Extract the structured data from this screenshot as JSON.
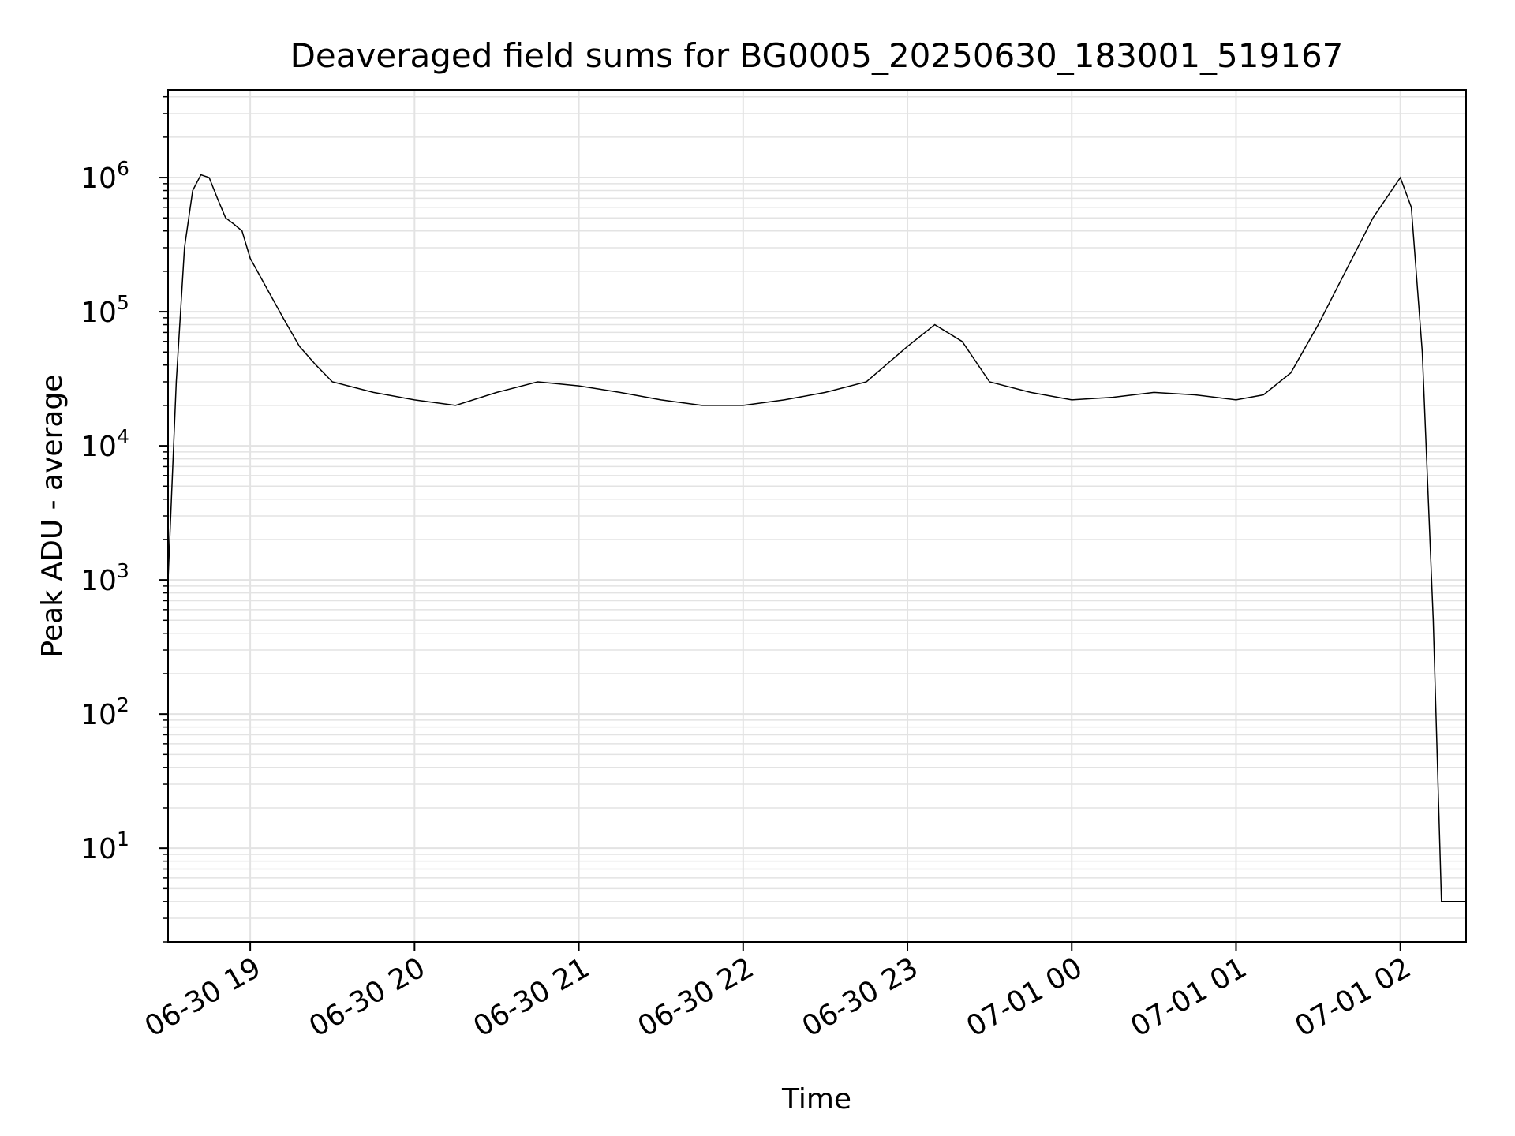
{
  "chart_data": {
    "type": "line",
    "title": "Deaveraged field sums for BG0005_20250630_183001_519167",
    "xlabel": "Time",
    "ylabel": "Peak ADU - average",
    "yscale": "log",
    "ylim": [
      2,
      4500000
    ],
    "xlim": [
      "2025-06-30 18:30",
      "2025-07-01 02:24"
    ],
    "grid": true,
    "line_color": "#000000",
    "grid_color": "#e3e3e3",
    "x_ticks": [
      {
        "value": "2025-06-30 19:00",
        "label": "06-30 19"
      },
      {
        "value": "2025-06-30 20:00",
        "label": "06-30 20"
      },
      {
        "value": "2025-06-30 21:00",
        "label": "06-30 21"
      },
      {
        "value": "2025-06-30 22:00",
        "label": "06-30 22"
      },
      {
        "value": "2025-06-30 23:00",
        "label": "06-30 23"
      },
      {
        "value": "2025-07-01 00:00",
        "label": "07-01 00"
      },
      {
        "value": "2025-07-01 01:00",
        "label": "07-01 01"
      },
      {
        "value": "2025-07-01 02:00",
        "label": "07-01 02"
      }
    ],
    "y_ticks": [
      {
        "value": 10,
        "base": "10",
        "exp": "1"
      },
      {
        "value": 100,
        "base": "10",
        "exp": "2"
      },
      {
        "value": 1000,
        "base": "10",
        "exp": "3"
      },
      {
        "value": 10000,
        "base": "10",
        "exp": "4"
      },
      {
        "value": 100000,
        "base": "10",
        "exp": "5"
      },
      {
        "value": 1000000,
        "base": "10",
        "exp": "6"
      }
    ],
    "series": [
      {
        "points": [
          [
            "2025-06-30 18:30",
            1000
          ],
          [
            "2025-06-30 18:33",
            30000
          ],
          [
            "2025-06-30 18:36",
            300000
          ],
          [
            "2025-06-30 18:39",
            800000
          ],
          [
            "2025-06-30 18:42",
            1050000
          ],
          [
            "2025-06-30 18:45",
            1000000
          ],
          [
            "2025-06-30 18:48",
            700000
          ],
          [
            "2025-06-30 18:51",
            500000
          ],
          [
            "2025-06-30 18:54",
            450000
          ],
          [
            "2025-06-30 18:57",
            400000
          ],
          [
            "2025-06-30 19:00",
            250000
          ],
          [
            "2025-06-30 19:06",
            150000
          ],
          [
            "2025-06-30 19:12",
            90000
          ],
          [
            "2025-06-30 19:18",
            55000
          ],
          [
            "2025-06-30 19:24",
            40000
          ],
          [
            "2025-06-30 19:30",
            30000
          ],
          [
            "2025-06-30 19:45",
            25000
          ],
          [
            "2025-06-30 20:00",
            22000
          ],
          [
            "2025-06-30 20:15",
            20000
          ],
          [
            "2025-06-30 20:30",
            25000
          ],
          [
            "2025-06-30 20:45",
            30000
          ],
          [
            "2025-06-30 21:00",
            28000
          ],
          [
            "2025-06-30 21:15",
            25000
          ],
          [
            "2025-06-30 21:30",
            22000
          ],
          [
            "2025-06-30 21:45",
            20000
          ],
          [
            "2025-06-30 22:00",
            20000
          ],
          [
            "2025-06-30 22:15",
            22000
          ],
          [
            "2025-06-30 22:30",
            25000
          ],
          [
            "2025-06-30 22:45",
            30000
          ],
          [
            "2025-06-30 23:00",
            55000
          ],
          [
            "2025-06-30 23:10",
            80000
          ],
          [
            "2025-06-30 23:20",
            60000
          ],
          [
            "2025-06-30 23:30",
            30000
          ],
          [
            "2025-06-30 23:45",
            25000
          ],
          [
            "2025-07-01 00:00",
            22000
          ],
          [
            "2025-07-01 00:15",
            23000
          ],
          [
            "2025-07-01 00:30",
            25000
          ],
          [
            "2025-07-01 00:45",
            24000
          ],
          [
            "2025-07-01 01:00",
            22000
          ],
          [
            "2025-07-01 01:10",
            24000
          ],
          [
            "2025-07-01 01:20",
            35000
          ],
          [
            "2025-07-01 01:30",
            80000
          ],
          [
            "2025-07-01 01:40",
            200000
          ],
          [
            "2025-07-01 01:50",
            500000
          ],
          [
            "2025-07-01 02:00",
            1000000
          ],
          [
            "2025-07-01 02:04",
            600000
          ],
          [
            "2025-07-01 02:08",
            50000
          ],
          [
            "2025-07-01 02:12",
            500
          ],
          [
            "2025-07-01 02:15",
            4
          ],
          [
            "2025-07-01 02:24",
            4
          ]
        ]
      }
    ]
  }
}
